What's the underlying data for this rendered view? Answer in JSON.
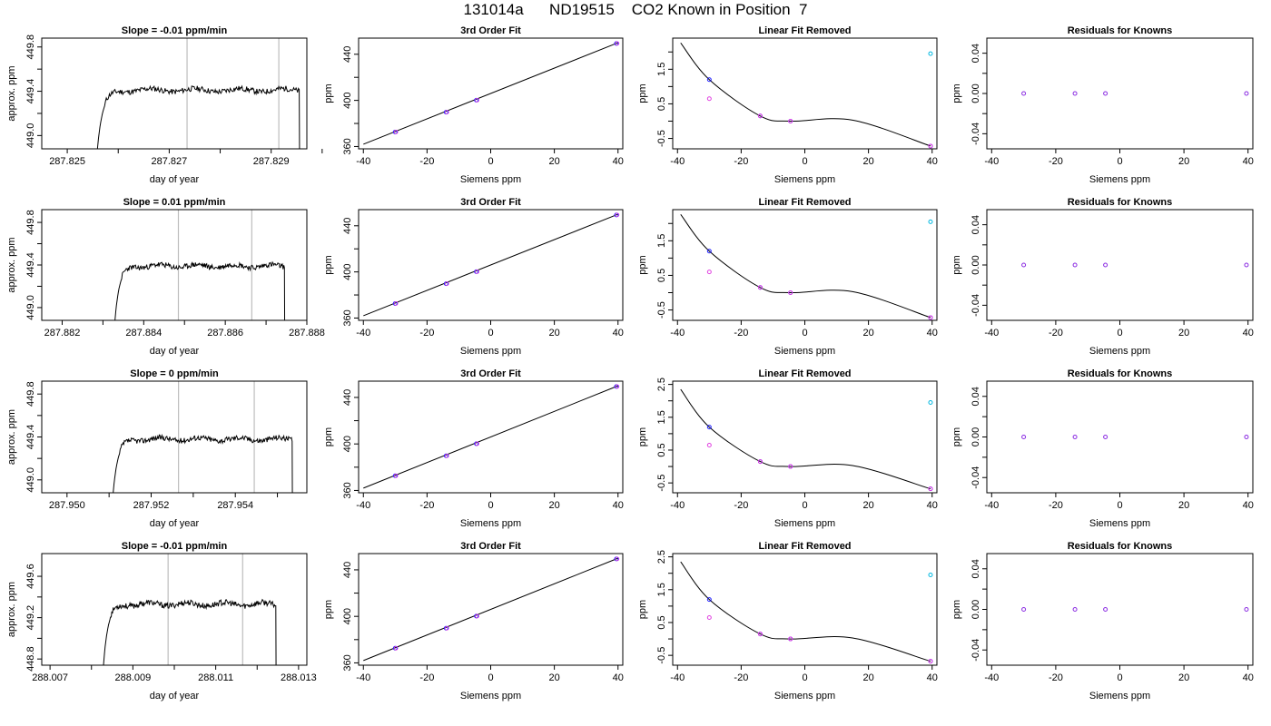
{
  "title": "131014a      ND19515    CO2 Known in Position  7",
  "colors": {
    "trace": "#000000",
    "guide_lines": "#bdbdbd",
    "fit_line": "#000000",
    "points_blue": "#1f1fff",
    "points_magenta": "#e040e0",
    "points_cyan": "#00b8e0",
    "points_purple": "#8a2be2"
  },
  "chart_data": [
    {
      "type": "line",
      "title": "Slope =  -0.01  ppm/min",
      "xlabel": "day of year",
      "ylabel": "approx. ppm",
      "xlim": [
        287.8245,
        287.8297
      ],
      "ylim": [
        448.88,
        449.88
      ],
      "xticks": [
        287.825,
        287.826,
        287.827,
        287.828,
        287.829,
        287.83
      ],
      "xtick_labels": [
        "287.825",
        "",
        "287.827",
        "",
        "287.829",
        ""
      ],
      "yticks": [
        449.0,
        449.2,
        449.4,
        449.6,
        449.8
      ],
      "ytick_labels": [
        "449.0",
        "",
        "449.4",
        "",
        "449.8"
      ],
      "vlines": [
        287.82735,
        287.82915
      ],
      "trace": {
        "x0": 287.82555,
        "x1": 287.82955,
        "level": 449.41,
        "noise": 0.025,
        "seed": 11
      }
    },
    {
      "type": "line",
      "title": "Slope =  0.01  ppm/min",
      "xlabel": "day of year",
      "ylabel": "approx. ppm",
      "xlim": [
        287.8815,
        287.888
      ],
      "ylim": [
        448.88,
        449.92
      ],
      "xticks": [
        287.882,
        287.883,
        287.884,
        287.885,
        287.886,
        287.887,
        287.888
      ],
      "xtick_labels": [
        "287.882",
        "",
        "287.884",
        "",
        "287.886",
        "",
        "287.888"
      ],
      "yticks": [
        449.0,
        449.2,
        449.4,
        449.6,
        449.8
      ],
      "ytick_labels": [
        "449.0",
        "",
        "449.4",
        "",
        "449.8"
      ],
      "vlines": [
        287.88485,
        287.88665
      ],
      "trace": {
        "x0": 287.88325,
        "x1": 287.88745,
        "level": 449.39,
        "noise": 0.025,
        "seed": 23
      }
    },
    {
      "type": "line",
      "title": "Slope =  0  ppm/min",
      "xlabel": "day of year",
      "ylabel": "approx. ppm",
      "xlim": [
        287.9494,
        287.9557
      ],
      "ylim": [
        448.88,
        449.92
      ],
      "xticks": [
        287.95,
        287.951,
        287.952,
        287.953,
        287.954,
        287.955
      ],
      "xtick_labels": [
        "287.950",
        "",
        "287.952",
        "",
        "287.954",
        ""
      ],
      "yticks": [
        449.0,
        449.2,
        449.4,
        449.6,
        449.8
      ],
      "ytick_labels": [
        "449.0",
        "",
        "449.4",
        "",
        "449.8"
      ],
      "vlines": [
        287.95265,
        287.95445
      ],
      "trace": {
        "x0": 287.95105,
        "x1": 287.95535,
        "level": 449.38,
        "noise": 0.025,
        "seed": 37
      }
    },
    {
      "type": "line",
      "title": "Slope =  -0.01  ppm/min",
      "xlabel": "day of year",
      "ylabel": "approx. ppm",
      "xlim": [
        288.0068,
        288.0132
      ],
      "ylim": [
        448.74,
        449.82
      ],
      "xticks": [
        288.007,
        288.008,
        288.009,
        288.01,
        288.011,
        288.012,
        288.013
      ],
      "xtick_labels": [
        "288.007",
        "",
        "288.009",
        "",
        "288.011",
        "",
        "288.013"
      ],
      "yticks": [
        448.8,
        449.0,
        449.2,
        449.4,
        449.6
      ],
      "ytick_labels": [
        "448.8",
        "",
        "449.2",
        "",
        "449.6"
      ],
      "vlines": [
        288.00985,
        288.01165
      ],
      "trace": {
        "x0": 288.00825,
        "x1": 288.01245,
        "level": 449.33,
        "noise": 0.028,
        "seed": 53
      }
    },
    {
      "type": "line",
      "title": "3rd Order Fit",
      "xlabel": "Siemens ppm",
      "ylabel": "ppm",
      "xlim": [
        -41.5,
        41.5
      ],
      "ylim": [
        358,
        454
      ],
      "xticks": [
        -40,
        -20,
        0,
        20,
        40
      ],
      "xtick_labels": [
        "-40",
        "-20",
        "0",
        "20",
        "40"
      ],
      "yticks": [
        360,
        380,
        400,
        420,
        440
      ],
      "ytick_labels": [
        "360",
        "",
        "400",
        "",
        "440"
      ],
      "line": {
        "x": [
          -40,
          40
        ],
        "y": [
          362,
          450
        ]
      },
      "points": {
        "x": [
          -30.0,
          -14.0,
          -4.5,
          39.5
        ],
        "y": [
          372.6,
          389.8,
          400.2,
          449.4
        ]
      }
    },
    {
      "type": "line",
      "title": "3rd Order Fit",
      "xlabel": "Siemens ppm",
      "ylabel": "ppm",
      "xlim": [
        -41.5,
        41.5
      ],
      "ylim": [
        358,
        454
      ],
      "xticks": [
        -40,
        -20,
        0,
        20,
        40
      ],
      "xtick_labels": [
        "-40",
        "-20",
        "0",
        "20",
        "40"
      ],
      "yticks": [
        360,
        380,
        400,
        420,
        440
      ],
      "ytick_labels": [
        "360",
        "",
        "400",
        "",
        "440"
      ],
      "line": {
        "x": [
          -40,
          40
        ],
        "y": [
          362,
          450
        ]
      },
      "points": {
        "x": [
          -30.0,
          -14.0,
          -4.5,
          39.5
        ],
        "y": [
          372.6,
          389.8,
          400.2,
          449.4
        ]
      }
    },
    {
      "type": "line",
      "title": "3rd Order Fit",
      "xlabel": "Siemens ppm",
      "ylabel": "ppm",
      "xlim": [
        -41.5,
        41.5
      ],
      "ylim": [
        358,
        454
      ],
      "xticks": [
        -40,
        -20,
        0,
        20,
        40
      ],
      "xtick_labels": [
        "-40",
        "-20",
        "0",
        "20",
        "40"
      ],
      "yticks": [
        360,
        380,
        400,
        420,
        440
      ],
      "ytick_labels": [
        "360",
        "",
        "400",
        "",
        "440"
      ],
      "line": {
        "x": [
          -40,
          40
        ],
        "y": [
          362,
          450
        ]
      },
      "points": {
        "x": [
          -30.0,
          -14.0,
          -4.5,
          39.5
        ],
        "y": [
          372.6,
          389.8,
          400.2,
          449.4
        ]
      }
    },
    {
      "type": "line",
      "title": "3rd Order Fit",
      "xlabel": "Siemens ppm",
      "ylabel": "ppm",
      "xlim": [
        -41.5,
        41.5
      ],
      "ylim": [
        358,
        454
      ],
      "xticks": [
        -40,
        -20,
        0,
        20,
        40
      ],
      "xtick_labels": [
        "-40",
        "-20",
        "0",
        "20",
        "40"
      ],
      "yticks": [
        360,
        380,
        400,
        420,
        440
      ],
      "ytick_labels": [
        "360",
        "",
        "400",
        "",
        "440"
      ],
      "line": {
        "x": [
          -40,
          40
        ],
        "y": [
          362,
          450
        ]
      },
      "points": {
        "x": [
          -30.0,
          -14.0,
          -4.5,
          39.5
        ],
        "y": [
          372.6,
          389.8,
          400.2,
          449.4
        ]
      }
    },
    {
      "type": "scatter",
      "title": "Linear Fit Removed",
      "xlabel": "Siemens ppm",
      "ylabel": "ppm",
      "xlim": [
        -41.5,
        41.5
      ],
      "ylim": [
        -0.8,
        2.4
      ],
      "xticks": [
        -40,
        -20,
        0,
        20,
        40
      ],
      "xtick_labels": [
        "-40",
        "-20",
        "0",
        "20",
        "40"
      ],
      "yticks": [
        -0.5,
        0,
        0.5,
        1,
        1.5,
        2
      ],
      "ytick_labels": [
        "-0.5",
        "",
        "0.5",
        "",
        "1.5",
        ""
      ],
      "curve": {
        "x": [
          -39,
          -30,
          -14,
          -4.5,
          15,
          39.5
        ],
        "y": [
          2.26,
          1.2,
          0.15,
          0.0,
          0.03,
          -0.72
        ]
      },
      "series": [
        {
          "color": "points_blue",
          "x": [
            -30.0,
            -14.0,
            -4.5,
            39.5
          ],
          "y": [
            1.2,
            0.15,
            0.0,
            -0.72
          ]
        },
        {
          "color": "points_magenta",
          "x": [
            -30.0,
            -14.0,
            -4.5,
            39.5
          ],
          "y": [
            0.65,
            0.15,
            0.0,
            -0.72
          ]
        },
        {
          "color": "points_cyan",
          "x": [
            39.5
          ],
          "y": [
            1.95
          ]
        }
      ]
    },
    {
      "type": "scatter",
      "title": "Linear Fit Removed",
      "xlabel": "Siemens ppm",
      "ylabel": "ppm",
      "xlim": [
        -41.5,
        41.5
      ],
      "ylim": [
        -0.8,
        2.4
      ],
      "xticks": [
        -40,
        -20,
        0,
        20,
        40
      ],
      "xtick_labels": [
        "-40",
        "-20",
        "0",
        "20",
        "40"
      ],
      "yticks": [
        -0.5,
        0,
        0.5,
        1,
        1.5,
        2
      ],
      "ytick_labels": [
        "-0.5",
        "",
        "0.5",
        "",
        "1.5",
        ""
      ],
      "curve": {
        "x": [
          -39,
          -30,
          -14,
          -4.5,
          15,
          39.5
        ],
        "y": [
          2.26,
          1.2,
          0.15,
          0.0,
          0.03,
          -0.72
        ]
      },
      "series": [
        {
          "color": "points_blue",
          "x": [
            -30.0,
            -14.0,
            -4.5,
            39.5
          ],
          "y": [
            1.2,
            0.15,
            0.0,
            -0.72
          ]
        },
        {
          "color": "points_magenta",
          "x": [
            -30.0,
            -14.0,
            -4.5,
            39.5
          ],
          "y": [
            0.6,
            0.15,
            0.0,
            -0.72
          ]
        },
        {
          "color": "points_cyan",
          "x": [
            39.5
          ],
          "y": [
            2.05
          ]
        }
      ]
    },
    {
      "type": "scatter",
      "title": "Linear Fit Removed",
      "xlabel": "Siemens ppm",
      "ylabel": "ppm",
      "xlim": [
        -41.5,
        41.5
      ],
      "ylim": [
        -0.8,
        2.6
      ],
      "xticks": [
        -40,
        -20,
        0,
        20,
        40
      ],
      "xtick_labels": [
        "-40",
        "-20",
        "0",
        "20",
        "40"
      ],
      "yticks": [
        -0.5,
        0,
        0.5,
        1,
        1.5,
        2,
        2.5
      ],
      "ytick_labels": [
        "-0.5",
        "",
        "0.5",
        "",
        "1.5",
        "",
        "2.5"
      ],
      "curve": {
        "x": [
          -39,
          -30,
          -14,
          -4.5,
          15,
          39.5
        ],
        "y": [
          2.35,
          1.2,
          0.15,
          0.0,
          0.03,
          -0.68
        ]
      },
      "series": [
        {
          "color": "points_blue",
          "x": [
            -30.0,
            -14.0,
            -4.5,
            39.5
          ],
          "y": [
            1.2,
            0.15,
            0.0,
            -0.68
          ]
        },
        {
          "color": "points_magenta",
          "x": [
            -30.0,
            -14.0,
            -4.5,
            39.5
          ],
          "y": [
            0.65,
            0.15,
            0.0,
            -0.68
          ]
        },
        {
          "color": "points_cyan",
          "x": [
            39.5
          ],
          "y": [
            1.95
          ]
        }
      ]
    },
    {
      "type": "scatter",
      "title": "Linear Fit Removed",
      "xlabel": "Siemens ppm",
      "ylabel": "ppm",
      "xlim": [
        -41.5,
        41.5
      ],
      "ylim": [
        -0.8,
        2.6
      ],
      "xticks": [
        -40,
        -20,
        0,
        20,
        40
      ],
      "xtick_labels": [
        "-40",
        "-20",
        "0",
        "20",
        "40"
      ],
      "yticks": [
        -0.5,
        0,
        0.5,
        1,
        1.5,
        2,
        2.5
      ],
      "ytick_labels": [
        "-0.5",
        "",
        "0.5",
        "",
        "1.5",
        "",
        "2.5"
      ],
      "curve": {
        "x": [
          -39,
          -30,
          -14,
          -4.5,
          15,
          39.5
        ],
        "y": [
          2.35,
          1.2,
          0.15,
          0.0,
          0.03,
          -0.68
        ]
      },
      "series": [
        {
          "color": "points_blue",
          "x": [
            -30.0,
            -14.0,
            -4.5,
            39.5
          ],
          "y": [
            1.2,
            0.15,
            0.0,
            -0.68
          ]
        },
        {
          "color": "points_magenta",
          "x": [
            -30.0,
            -14.0,
            -4.5,
            39.5
          ],
          "y": [
            0.65,
            0.15,
            0.0,
            -0.68
          ]
        },
        {
          "color": "points_cyan",
          "x": [
            39.5
          ],
          "y": [
            1.95
          ]
        }
      ]
    },
    {
      "type": "scatter",
      "title": "Residuals for Knowns",
      "xlabel": "Siemens ppm",
      "ylabel": "ppm",
      "xlim": [
        -41.5,
        41.5
      ],
      "ylim": [
        -0.055,
        0.055
      ],
      "xticks": [
        -40,
        -20,
        0,
        20,
        40
      ],
      "xtick_labels": [
        "-40",
        "-20",
        "0",
        "20",
        "40"
      ],
      "yticks": [
        -0.04,
        -0.02,
        0.0,
        0.02,
        0.04
      ],
      "ytick_labels": [
        "-0.04",
        "",
        "0.00",
        "",
        "0.04"
      ],
      "series": [
        {
          "color": "points_purple",
          "x": [
            -30.0,
            -14.0,
            -4.5,
            39.5
          ],
          "y": [
            0.0,
            0.0,
            0.0,
            0.0
          ]
        }
      ]
    },
    {
      "type": "scatter",
      "title": "Residuals for Knowns",
      "xlabel": "Siemens ppm",
      "ylabel": "ppm",
      "xlim": [
        -41.5,
        41.5
      ],
      "ylim": [
        -0.055,
        0.055
      ],
      "xticks": [
        -40,
        -20,
        0,
        20,
        40
      ],
      "xtick_labels": [
        "-40",
        "-20",
        "0",
        "20",
        "40"
      ],
      "yticks": [
        -0.04,
        -0.02,
        0.0,
        0.02,
        0.04
      ],
      "ytick_labels": [
        "-0.04",
        "",
        "0.00",
        "",
        "0.04"
      ],
      "series": [
        {
          "color": "points_purple",
          "x": [
            -30.0,
            -14.0,
            -4.5,
            39.5
          ],
          "y": [
            0.0,
            0.0,
            0.0,
            0.0
          ]
        }
      ]
    },
    {
      "type": "scatter",
      "title": "Residuals for Knowns",
      "xlabel": "Siemens ppm",
      "ylabel": "ppm",
      "xlim": [
        -41.5,
        41.5
      ],
      "ylim": [
        -0.055,
        0.055
      ],
      "xticks": [
        -40,
        -20,
        0,
        20,
        40
      ],
      "xtick_labels": [
        "-40",
        "-20",
        "0",
        "20",
        "40"
      ],
      "yticks": [
        -0.04,
        -0.02,
        0.0,
        0.02,
        0.04
      ],
      "ytick_labels": [
        "-0.04",
        "",
        "0.00",
        "",
        "0.04"
      ],
      "series": [
        {
          "color": "points_purple",
          "x": [
            -30.0,
            -14.0,
            -4.5,
            39.5
          ],
          "y": [
            0.0,
            0.0,
            0.0,
            0.0
          ]
        }
      ]
    },
    {
      "type": "scatter",
      "title": "Residuals for Knowns",
      "xlabel": "Siemens ppm",
      "ylabel": "ppm",
      "xlim": [
        -41.5,
        41.5
      ],
      "ylim": [
        -0.055,
        0.055
      ],
      "xticks": [
        -40,
        -20,
        0,
        20,
        40
      ],
      "xtick_labels": [
        "-40",
        "-20",
        "0",
        "20",
        "40"
      ],
      "yticks": [
        -0.04,
        -0.02,
        0.0,
        0.02,
        0.04
      ],
      "ytick_labels": [
        "-0.04",
        "",
        "0.00",
        "",
        "0.04"
      ],
      "series": [
        {
          "color": "points_purple",
          "x": [
            -30.0,
            -14.0,
            -4.5,
            39.5
          ],
          "y": [
            0.0,
            0.0,
            0.0,
            0.0
          ]
        }
      ]
    }
  ]
}
